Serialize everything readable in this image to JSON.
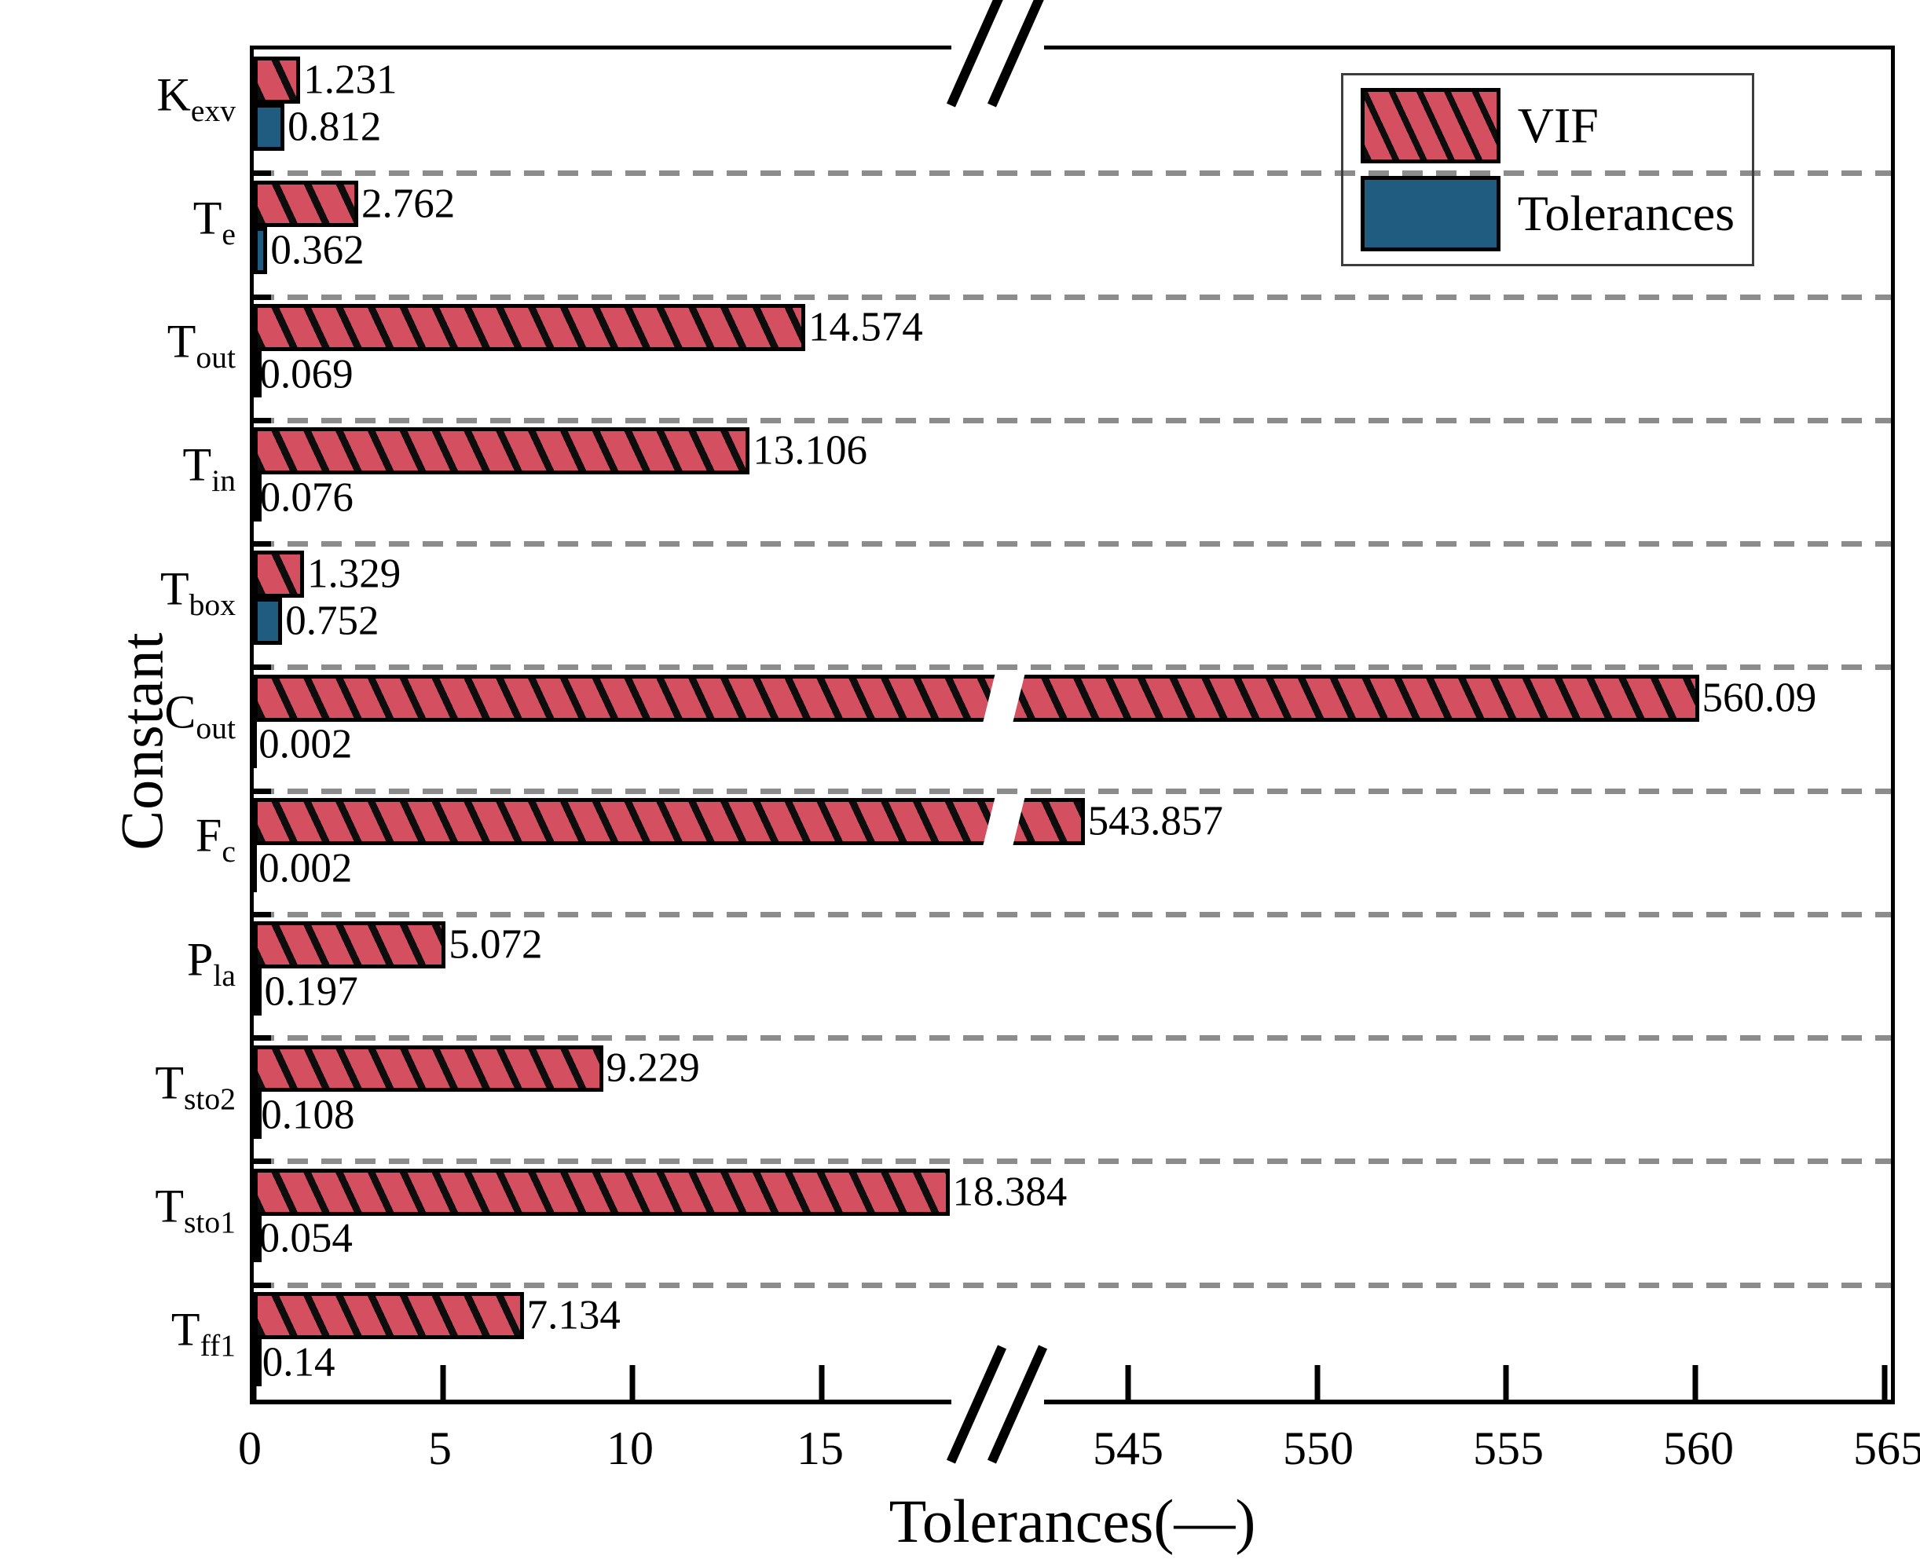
{
  "figure": {
    "y_axis_title": "Constant",
    "x_axis_title": "Tolerances(—)",
    "legend": [
      {
        "label": "VIF",
        "swatch": "red-hatched"
      },
      {
        "label": "Tolerances",
        "swatch": "blue-solid"
      }
    ],
    "colors": {
      "vif_bar": "#d45060",
      "tolerance_bar": "#1f5c80",
      "hatch": "#0d0d0d",
      "gridline": "#8c8c8c",
      "axis": "#000000"
    }
  },
  "chart_data": {
    "type": "bar",
    "orientation": "horizontal",
    "title": "",
    "xlabel": "Tolerances(—)",
    "ylabel": "Constant",
    "grid": "horizontal dashed between categories",
    "legend_position": "upper-right inside plot",
    "axis_break": {
      "broken_x_axis": true,
      "left_segment_range": [
        0,
        20
      ],
      "right_segment_range": [
        541,
        565
      ],
      "left_tick_labels": [
        "0",
        "5",
        "10",
        "15"
      ],
      "right_tick_labels": [
        "545",
        "550",
        "555",
        "560",
        "565"
      ]
    },
    "categories": [
      "Kexv",
      "Te",
      "Tout",
      "Tin",
      "Tbox",
      "Cout",
      "Fc",
      "Pla",
      "Tsto2",
      "Tsto1",
      "Tff1"
    ],
    "categories_rich": [
      {
        "main": "K",
        "sub": "exv"
      },
      {
        "main": "T",
        "sub": "e"
      },
      {
        "main": "T",
        "sub": "out"
      },
      {
        "main": "T",
        "sub": "in"
      },
      {
        "main": "T",
        "sub": "box"
      },
      {
        "main": "C",
        "sub": "out"
      },
      {
        "main": "F",
        "sub": "c"
      },
      {
        "main": "P",
        "sub": "la"
      },
      {
        "main": "T",
        "sub": "sto2"
      },
      {
        "main": "T",
        "sub": "sto1"
      },
      {
        "main": "T",
        "sub": "ff1"
      }
    ],
    "series": [
      {
        "name": "VIF",
        "color": "#d45060",
        "hatched": true,
        "values": [
          1.231,
          2.762,
          14.574,
          13.106,
          1.329,
          560.09,
          543.857,
          5.072,
          9.229,
          18.384,
          7.134
        ],
        "labels": [
          "1.231",
          "2.762",
          "14.574",
          "13.106",
          "1.329",
          "560.09",
          "543.857",
          "5.072",
          "9.229",
          "18.384",
          "7.134"
        ]
      },
      {
        "name": "Tolerances",
        "color": "#1f5c80",
        "hatched": false,
        "values": [
          0.812,
          0.362,
          0.069,
          0.076,
          0.752,
          0.002,
          0.002,
          0.197,
          0.108,
          0.054,
          0.14
        ],
        "labels": [
          "0.812",
          "0.362",
          "0.069",
          "0.076",
          "0.752",
          "0.002",
          "0.002",
          "0.197",
          "0.108",
          "0.054",
          "0.14"
        ]
      }
    ]
  }
}
